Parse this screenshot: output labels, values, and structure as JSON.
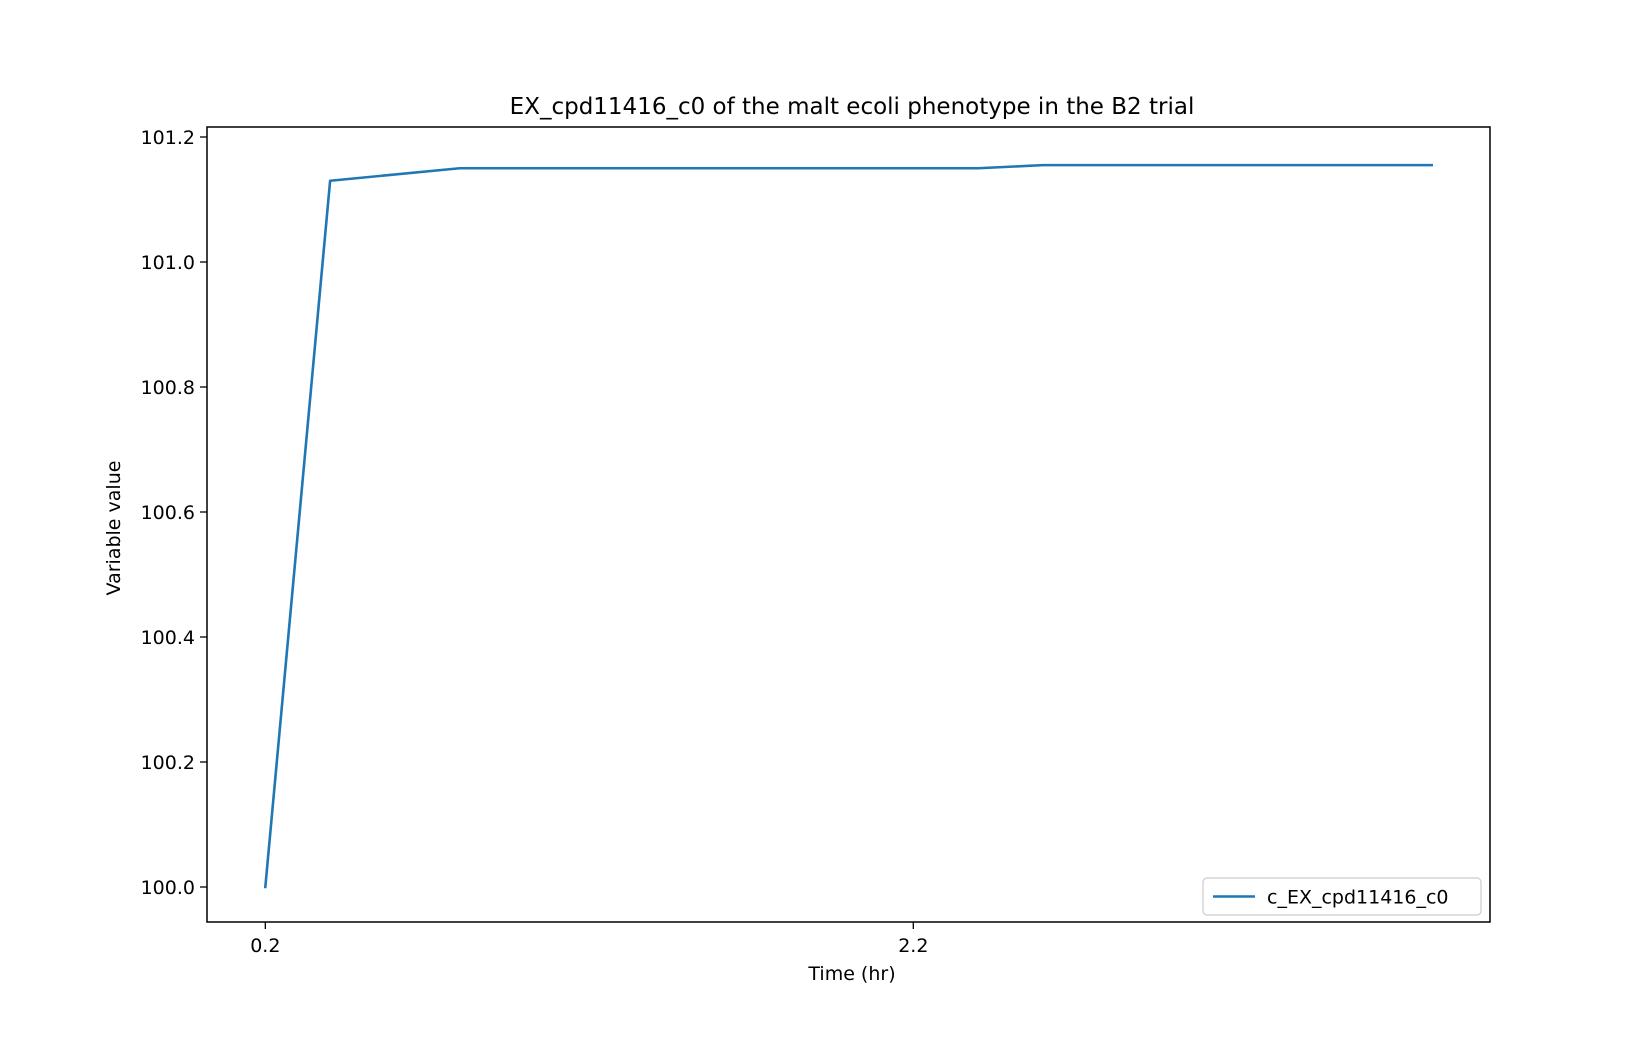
{
  "chart_data": {
    "type": "line",
    "title": "EX_cpd11416_c0 of the malt ecoli phenotype in the B2 trial",
    "xlabel": "Time (hr)",
    "ylabel": "Variable value",
    "xlim": [
      0.02,
      3.98
    ],
    "ylim": [
      99.944,
      101.216
    ],
    "x_ticks": [
      {
        "value": 0.2,
        "label": "0.2"
      },
      {
        "value": 2.2,
        "label": "2.2"
      }
    ],
    "y_ticks": [
      {
        "value": 100.0,
        "label": "100.0"
      },
      {
        "value": 100.2,
        "label": "100.2"
      },
      {
        "value": 100.4,
        "label": "100.4"
      },
      {
        "value": 100.6,
        "label": "100.6"
      },
      {
        "value": 100.8,
        "label": "100.8"
      },
      {
        "value": 101.0,
        "label": "101.0"
      },
      {
        "value": 101.2,
        "label": "101.2"
      }
    ],
    "grid": false,
    "legend_position": "lower-right",
    "series": [
      {
        "name": "c_EX_cpd11416_c0",
        "color": "#1f77b4",
        "x": [
          0.2,
          0.4,
          0.8,
          1.2,
          1.6,
          2.0,
          2.4,
          2.6,
          3.0,
          3.4,
          3.8
        ],
        "y": [
          100.0,
          101.13,
          101.15,
          101.15,
          101.15,
          101.15,
          101.15,
          101.155,
          101.155,
          101.155,
          101.155
        ]
      }
    ]
  }
}
